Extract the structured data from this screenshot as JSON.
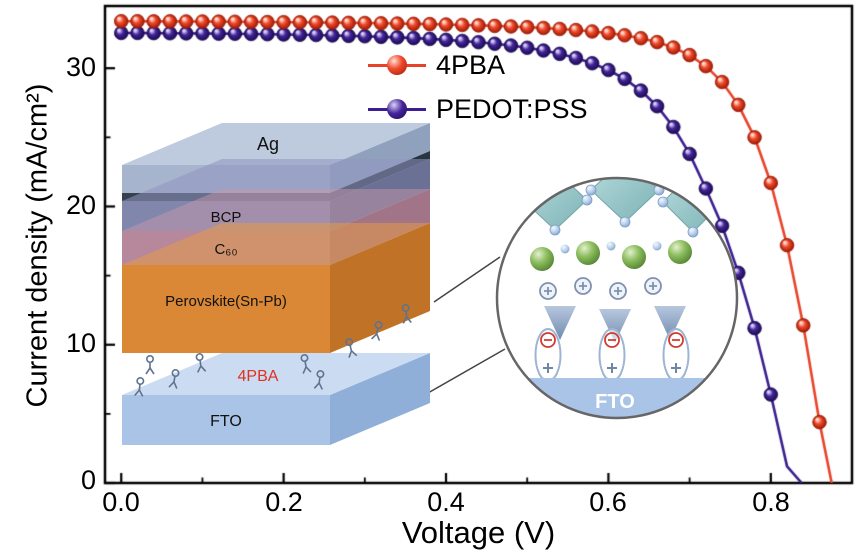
{
  "figure": {
    "xlabel": "Voltage (V)",
    "ylabel": "Current density (mA/cm²)"
  },
  "device_stack": {
    "layers": {
      "ag": "Ag",
      "bcp": "BCP",
      "c60": "C₆₀",
      "perovskite": "Perovskite(Sn-Pb)",
      "pba": "4PBA",
      "fto": "FTO"
    },
    "pba_color": "#e0301e"
  },
  "zoom_inset": {
    "fto": "FTO"
  },
  "chart_data": {
    "type": "line",
    "title": "",
    "xlabel": "Voltage (V)",
    "ylabel": "Current density (mA/cm²)",
    "xlim": [
      -0.02,
      0.9
    ],
    "ylim": [
      0,
      34.5
    ],
    "grid": false,
    "legend_position": "upper center-right inside",
    "x_ticks": {
      "values": [
        0.0,
        0.2,
        0.4,
        0.6,
        0.8
      ],
      "labels": [
        "0.0",
        "0.2",
        "0.4",
        "0.6",
        "0.8"
      ]
    },
    "x_minor_ticks": [
      0.1,
      0.3,
      0.5,
      0.7,
      0.9
    ],
    "y_ticks": {
      "values": [
        0,
        10,
        20,
        30
      ],
      "labels": [
        "0",
        "10",
        "20",
        "30"
      ]
    },
    "y_minor_ticks": [
      5,
      15,
      25
    ],
    "series": [
      {
        "name": "4PBA",
        "line": "#e8432a",
        "marker": {
          "light": "#ffddd0",
          "base": "#f1492b",
          "dark": "#9a1a05"
        },
        "x": [
          0.0,
          0.02,
          0.04,
          0.06,
          0.08,
          0.1,
          0.12,
          0.14,
          0.16,
          0.18,
          0.2,
          0.22,
          0.24,
          0.26,
          0.28,
          0.3,
          0.32,
          0.34,
          0.36,
          0.38,
          0.4,
          0.42,
          0.44,
          0.46,
          0.48,
          0.5,
          0.52,
          0.54,
          0.56,
          0.58,
          0.6,
          0.62,
          0.64,
          0.66,
          0.68,
          0.7,
          0.72,
          0.74,
          0.76,
          0.78,
          0.8,
          0.82,
          0.84,
          0.86,
          0.875
        ],
        "y": [
          33.4,
          33.4,
          33.39,
          33.39,
          33.38,
          33.38,
          33.37,
          33.36,
          33.35,
          33.34,
          33.33,
          33.32,
          33.31,
          33.3,
          33.28,
          33.27,
          33.25,
          33.23,
          33.21,
          33.19,
          33.16,
          33.13,
          33.1,
          33.06,
          33.02,
          32.97,
          32.91,
          32.84,
          32.76,
          32.66,
          32.54,
          32.38,
          32.17,
          31.89,
          31.5,
          30.95,
          30.15,
          29.0,
          27.35,
          25.0,
          21.7,
          17.2,
          11.4,
          4.4,
          0.0
        ]
      },
      {
        "name": "PEDOT:PSS",
        "line": "#3b1e8f",
        "marker": {
          "light": "#d9d1f5",
          "base": "#44259b",
          "dark": "#1a0a50"
        },
        "x": [
          0.0,
          0.02,
          0.04,
          0.06,
          0.08,
          0.1,
          0.12,
          0.14,
          0.16,
          0.18,
          0.2,
          0.22,
          0.24,
          0.26,
          0.28,
          0.3,
          0.32,
          0.34,
          0.36,
          0.38,
          0.4,
          0.42,
          0.44,
          0.46,
          0.48,
          0.5,
          0.52,
          0.54,
          0.56,
          0.58,
          0.6,
          0.62,
          0.64,
          0.66,
          0.68,
          0.7,
          0.72,
          0.74,
          0.76,
          0.78,
          0.8,
          0.82,
          0.838
        ],
        "y": [
          32.55,
          32.55,
          32.54,
          32.53,
          32.52,
          32.51,
          32.5,
          32.49,
          32.48,
          32.46,
          32.44,
          32.42,
          32.4,
          32.37,
          32.34,
          32.31,
          32.27,
          32.23,
          32.18,
          32.12,
          32.05,
          31.97,
          31.88,
          31.77,
          31.64,
          31.48,
          31.28,
          31.04,
          30.74,
          30.36,
          29.87,
          29.23,
          28.38,
          27.25,
          25.75,
          23.8,
          21.3,
          18.6,
          15.2,
          11.2,
          6.4,
          1.2,
          0.0
        ]
      }
    ]
  }
}
